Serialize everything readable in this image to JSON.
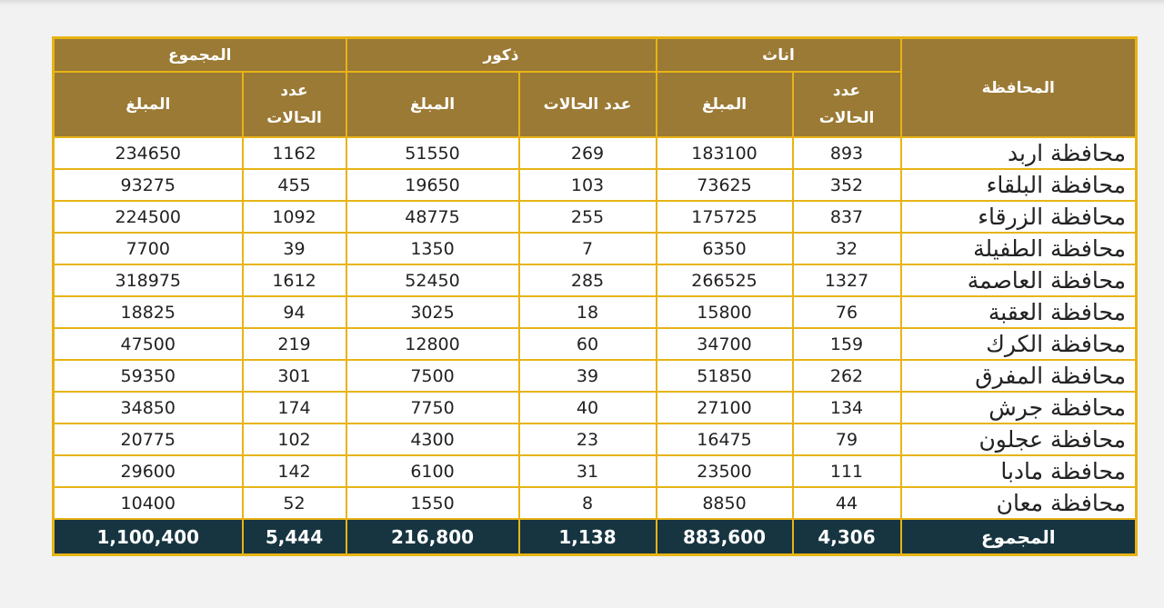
{
  "header": {
    "governorate": "المحافظة",
    "females": "اناث",
    "males": "ذكور",
    "total": "المجموع",
    "cases_wrapped": "عدد الحالات",
    "cases": "عدد الحالات",
    "amount": "المبلغ"
  },
  "rows": [
    {
      "gov": "محافظة اربد",
      "f_cases": "893",
      "f_amount": "183100",
      "m_cases": "269",
      "m_amount": "51550",
      "t_cases": "1162",
      "t_amount": "234650"
    },
    {
      "gov": "محافظة البلقاء",
      "f_cases": "352",
      "f_amount": "73625",
      "m_cases": "103",
      "m_amount": "19650",
      "t_cases": "455",
      "t_amount": "93275"
    },
    {
      "gov": "محافظة الزرقاء",
      "f_cases": "837",
      "f_amount": "175725",
      "m_cases": "255",
      "m_amount": "48775",
      "t_cases": "1092",
      "t_amount": "224500"
    },
    {
      "gov": "محافظة الطفيلة",
      "f_cases": "32",
      "f_amount": "6350",
      "m_cases": "7",
      "m_amount": "1350",
      "t_cases": "39",
      "t_amount": "7700"
    },
    {
      "gov": "محافظة العاصمة",
      "f_cases": "1327",
      "f_amount": "266525",
      "m_cases": "285",
      "m_amount": "52450",
      "t_cases": "1612",
      "t_amount": "318975"
    },
    {
      "gov": "محافظة العقبة",
      "f_cases": "76",
      "f_amount": "15800",
      "m_cases": "18",
      "m_amount": "3025",
      "t_cases": "94",
      "t_amount": "18825"
    },
    {
      "gov": "محافظة الكرك",
      "f_cases": "159",
      "f_amount": "34700",
      "m_cases": "60",
      "m_amount": "12800",
      "t_cases": "219",
      "t_amount": "47500"
    },
    {
      "gov": "محافظة المفرق",
      "f_cases": "262",
      "f_amount": "51850",
      "m_cases": "39",
      "m_amount": "7500",
      "t_cases": "301",
      "t_amount": "59350"
    },
    {
      "gov": "محافظة جرش",
      "f_cases": "134",
      "f_amount": "27100",
      "m_cases": "40",
      "m_amount": "7750",
      "t_cases": "174",
      "t_amount": "34850"
    },
    {
      "gov": "محافظة عجلون",
      "f_cases": "79",
      "f_amount": "16475",
      "m_cases": "23",
      "m_amount": "4300",
      "t_cases": "102",
      "t_amount": "20775"
    },
    {
      "gov": "محافظة مادبا",
      "f_cases": "111",
      "f_amount": "23500",
      "m_cases": "31",
      "m_amount": "6100",
      "t_cases": "142",
      "t_amount": "29600"
    },
    {
      "gov": "محافظة معان",
      "f_cases": "44",
      "f_amount": "8850",
      "m_cases": "8",
      "m_amount": "1550",
      "t_cases": "52",
      "t_amount": "10400"
    }
  ],
  "footer": {
    "label": "المجموع",
    "f_cases": "4,306",
    "f_amount": "883,600",
    "m_cases": "1,138",
    "m_amount": "216,800",
    "t_cases": "5,444",
    "t_amount": "1,100,400"
  },
  "colors": {
    "header_bg": "#9b7a35",
    "border": "#e7b416",
    "footer_bg": "#173540"
  }
}
